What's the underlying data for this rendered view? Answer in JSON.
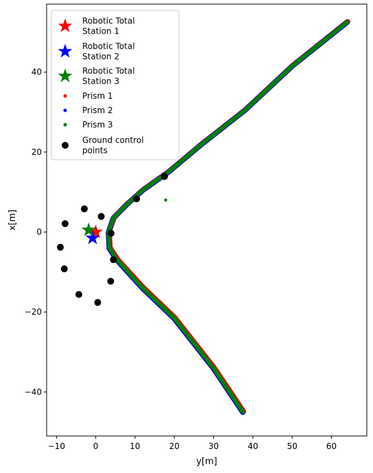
{
  "chart_data": {
    "type": "scatter",
    "xlabel": "y[m]",
    "ylabel": "x[m]",
    "xlim": [
      -12.5,
      69
    ],
    "ylim": [
      -51,
      57
    ],
    "xticks": [
      -10,
      0,
      10,
      20,
      30,
      40,
      50,
      60
    ],
    "yticks": [
      -40,
      -20,
      0,
      20,
      40
    ],
    "grid": false,
    "legend_position": "upper-left",
    "series": [
      {
        "name": "Robotic Total Station 1",
        "marker": "star",
        "color": "#ff0000",
        "points": [
          [
            0.0,
            0.0
          ]
        ]
      },
      {
        "name": "Robotic Total Station 2",
        "marker": "star",
        "color": "#0000ff",
        "points": [
          [
            -0.8,
            -1.5
          ]
        ]
      },
      {
        "name": "Robotic Total Station 3",
        "marker": "star",
        "color": "#008000",
        "points": [
          [
            -1.8,
            0.5
          ]
        ]
      },
      {
        "name": "Prism 1",
        "marker": "dot",
        "color": "#ff0000",
        "path": [
          [
            64.0,
            52.5
          ],
          [
            50,
            41.5
          ],
          [
            38,
            30.5
          ],
          [
            27,
            22
          ],
          [
            18.5,
            15
          ],
          [
            12,
            10.5
          ],
          [
            8,
            7
          ],
          [
            4.5,
            3.5
          ],
          [
            3.3,
            0
          ],
          [
            3.5,
            -4
          ],
          [
            5.5,
            -7
          ],
          [
            12,
            -14
          ],
          [
            20,
            -21.5
          ],
          [
            30,
            -34
          ],
          [
            37.5,
            -45
          ]
        ]
      },
      {
        "name": "Prism 2",
        "marker": "dot",
        "color": "#0000ff",
        "path": [
          [
            64.0,
            52.5
          ],
          [
            50,
            41.5
          ],
          [
            38,
            30.5
          ],
          [
            27,
            22
          ],
          [
            18.5,
            15
          ],
          [
            12,
            10.5
          ],
          [
            8,
            7
          ],
          [
            4.5,
            3.5
          ],
          [
            3.3,
            0
          ],
          [
            3.5,
            -4
          ],
          [
            5.5,
            -7
          ],
          [
            12,
            -14
          ],
          [
            20,
            -21.5
          ],
          [
            30,
            -34
          ],
          [
            37.5,
            -45
          ]
        ]
      },
      {
        "name": "Prism 3",
        "marker": "dot",
        "color": "#008000",
        "path": [
          [
            64.0,
            52.5
          ],
          [
            50,
            41.5
          ],
          [
            38,
            30.5
          ],
          [
            27,
            22
          ],
          [
            18.5,
            15
          ],
          [
            12,
            10.5
          ],
          [
            8,
            7
          ],
          [
            4.5,
            3.5
          ],
          [
            3.3,
            0
          ],
          [
            3.5,
            -4
          ],
          [
            5.5,
            -7
          ],
          [
            12,
            -14
          ],
          [
            20,
            -21.5
          ],
          [
            30,
            -34
          ],
          [
            37.5,
            -45
          ]
        ],
        "outliers": [
          [
            17.8,
            8.0
          ]
        ]
      },
      {
        "name": "Ground control points",
        "marker": "circle",
        "color": "#000000",
        "points": [
          [
            -2.9,
            5.8
          ],
          [
            1.4,
            3.9
          ],
          [
            -7.8,
            2.1
          ],
          [
            3.9,
            -0.3
          ],
          [
            -9.0,
            -3.8
          ],
          [
            4.5,
            -6.9
          ],
          [
            -8.0,
            -9.2
          ],
          [
            3.8,
            -12.3
          ],
          [
            -4.3,
            -15.6
          ],
          [
            0.5,
            -17.6
          ],
          [
            17.5,
            13.9
          ],
          [
            10.4,
            8.3
          ]
        ]
      }
    ],
    "legend_labels": [
      [
        "Robotic Total",
        "Station 1"
      ],
      [
        "Robotic Total",
        "Station 2"
      ],
      [
        "Robotic Total",
        "Station 3"
      ],
      [
        "Prism 1"
      ],
      [
        "Prism 2"
      ],
      [
        "Prism 3"
      ],
      [
        "Ground control",
        "points"
      ]
    ]
  }
}
